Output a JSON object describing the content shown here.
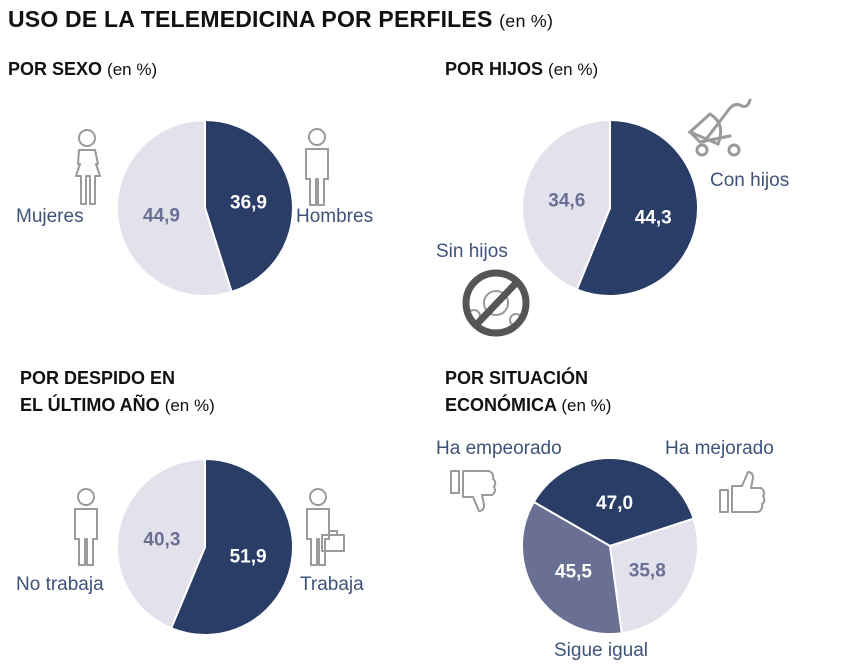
{
  "header": {
    "title": "USO DE LA TELEMEDICINA POR PERFILES",
    "title_unit": "(en %)"
  },
  "colors": {
    "dark": "#2a3d66",
    "light": "#e3e1ec",
    "mid": "#6a6f94",
    "label": "#3e5378",
    "icon": "#9a9a9a"
  },
  "chart_data": [
    {
      "type": "pie",
      "title": "POR SEXO",
      "unit": "(en %)",
      "series": [
        {
          "name": "Hombres",
          "value": 36.9,
          "label": "36,9",
          "color": "#2a3d66"
        },
        {
          "name": "Mujeres",
          "value": 44.9,
          "label": "44,9",
          "color": "#e3e1ec"
        }
      ]
    },
    {
      "type": "pie",
      "title": "POR HIJOS",
      "unit": "(en %)",
      "series": [
        {
          "name": "Con hijos",
          "value": 44.3,
          "label": "44,3",
          "color": "#2a3d66"
        },
        {
          "name": "Sin hijos",
          "value": 34.6,
          "label": "34,6",
          "color": "#e3e1ec"
        }
      ]
    },
    {
      "type": "pie",
      "title_line1": "POR DESPIDO EN",
      "title_line2": "EL ÚLTIMO AÑO",
      "unit": "(en %)",
      "series": [
        {
          "name": "Trabaja",
          "value": 51.9,
          "label": "51,9",
          "color": "#2a3d66"
        },
        {
          "name": "No trabaja",
          "value": 40.3,
          "label": "40,3",
          "color": "#e3e1ec"
        }
      ]
    },
    {
      "type": "pie",
      "title_line1": "POR SITUACIÓN",
      "title_line2": "ECONÓMICA",
      "unit": "(en %)",
      "series": [
        {
          "name": "Ha mejorado",
          "value": 47.0,
          "label": "47,0",
          "color": "#2a3d66"
        },
        {
          "name": "Sigue igual",
          "value": 35.8,
          "label": "35,8",
          "color": "#e3e1ec"
        },
        {
          "name": "Ha empeorado",
          "value": 45.5,
          "label": "45,5",
          "color": "#6a6f94"
        }
      ]
    }
  ]
}
